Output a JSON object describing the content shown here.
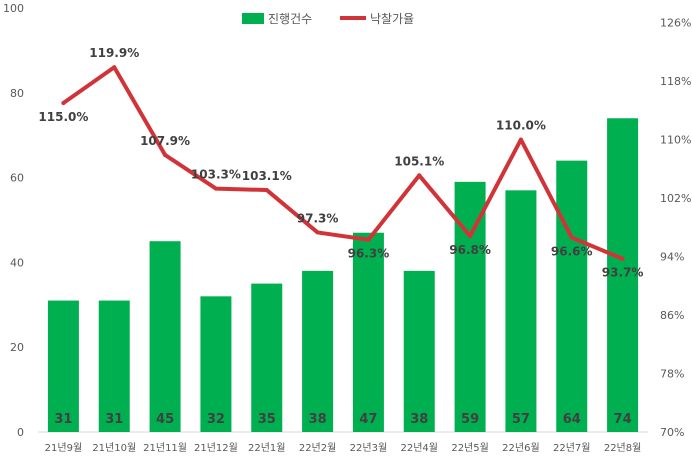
{
  "chart_data": {
    "type": "bar+line",
    "categories": [
      "21년9월",
      "21년10월",
      "21년11월",
      "21년12월",
      "22년1월",
      "22년2월",
      "22년3월",
      "22년4월",
      "22년5월",
      "22년6월",
      "22년7월",
      "22년8월"
    ],
    "series": [
      {
        "name": "진행건수",
        "type": "bar",
        "axis": "left",
        "color": "#00b050",
        "values": [
          31,
          31,
          45,
          32,
          35,
          38,
          47,
          38,
          59,
          57,
          64,
          74
        ],
        "labels": [
          "31",
          "31",
          "45",
          "32",
          "35",
          "38",
          "47",
          "38",
          "59",
          "57",
          "64",
          "74"
        ]
      },
      {
        "name": "낙찰가율",
        "type": "line",
        "axis": "right",
        "color": "#d13438",
        "values": [
          115.0,
          119.9,
          107.9,
          103.3,
          103.1,
          97.3,
          96.3,
          105.1,
          96.8,
          110.0,
          96.6,
          93.7
        ],
        "labels": [
          "115.0%",
          "119.9%",
          "107.9%",
          "103.3%",
          "103.1%",
          "97.3%",
          "96.3%",
          "105.1%",
          "96.8%",
          "110.0%",
          "96.6%",
          "93.7%"
        ]
      }
    ],
    "y_left": {
      "min": 0,
      "max": 100,
      "ticks": [
        "0",
        "20",
        "40",
        "60",
        "80",
        "100"
      ]
    },
    "y_right": {
      "min": 70,
      "max": 128,
      "ticks": [
        "70%",
        "78%",
        "86%",
        "94%",
        "102%",
        "110%",
        "118%",
        "126%"
      ],
      "tick_values": [
        70,
        78,
        86,
        94,
        102,
        110,
        118,
        126
      ]
    },
    "legend": {
      "position": "top",
      "items": [
        "진행건수",
        "낙찰가율"
      ]
    },
    "grid": false
  }
}
